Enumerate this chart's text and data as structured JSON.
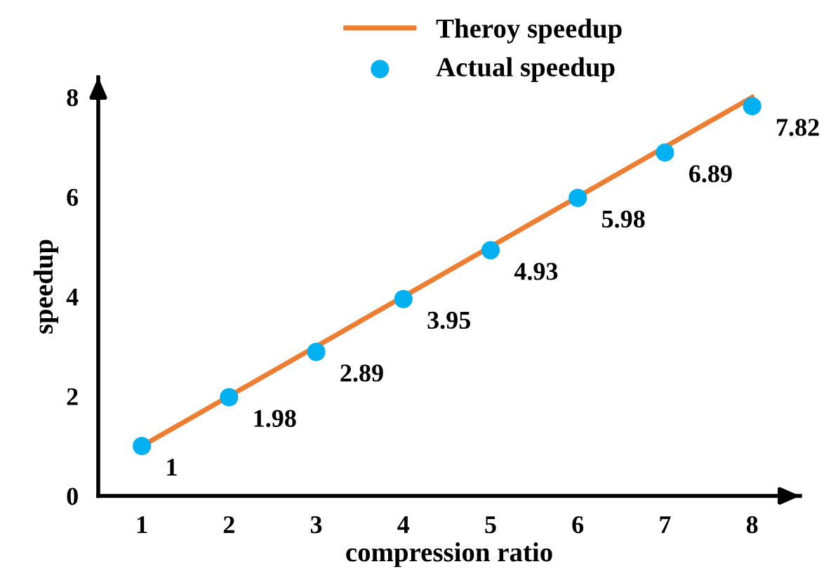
{
  "chart_data": {
    "type": "line",
    "xlabel": "compression ratio",
    "ylabel": "speedup",
    "x": [
      1,
      2,
      3,
      4,
      5,
      6,
      7,
      8
    ],
    "xlim": [
      0.5,
      8.55
    ],
    "xticks": [
      1,
      2,
      3,
      4,
      5,
      6,
      7,
      8
    ],
    "ylim": [
      0,
      8.4
    ],
    "yticks": [
      0,
      2,
      4,
      6,
      8
    ],
    "series": [
      {
        "name": "Theroy speedup",
        "color": "#ed7d31",
        "marker": "none",
        "line_style": "solid",
        "values": [
          1,
          2,
          3,
          4,
          5,
          6,
          7,
          8
        ]
      },
      {
        "name": "Actual speedup",
        "type": "scatter",
        "color": "#00b0f0",
        "marker": "circle",
        "values": [
          1,
          1.98,
          2.89,
          3.95,
          4.93,
          5.98,
          6.89,
          7.82
        ],
        "value_labels": [
          "1",
          "1.98",
          "2.89",
          "3.95",
          "4.93",
          "5.98",
          "6.89",
          "7.82"
        ]
      }
    ],
    "grid": false,
    "legend": "top"
  }
}
